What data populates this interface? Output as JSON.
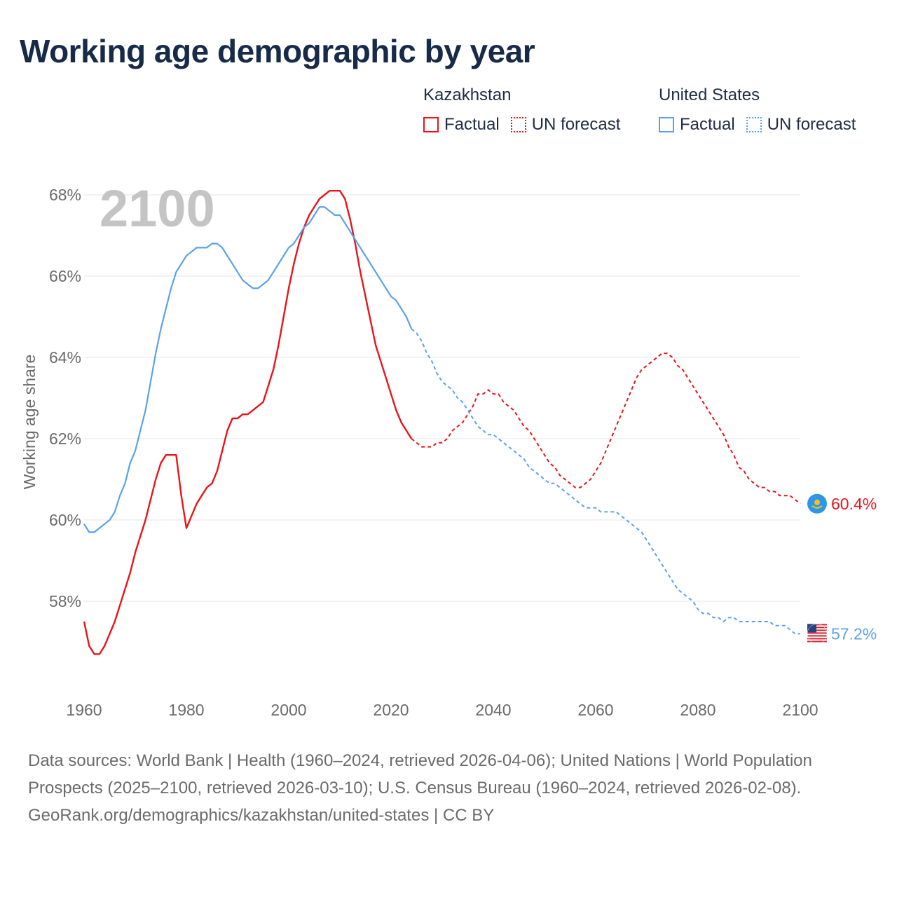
{
  "title": "Working age demographic by year",
  "legend": {
    "groups": [
      {
        "name": "Kazakhstan",
        "factual": "Factual",
        "forecast": "UN forecast",
        "color": "#e8141a"
      },
      {
        "name": "United States",
        "factual": "Factual",
        "forecast": "UN forecast",
        "color": "#5aa2e8"
      }
    ]
  },
  "chart_data": {
    "type": "line",
    "title": "Working age demographic by year",
    "year_watermark": "2100",
    "ylabel": "Working age share",
    "xlabel": "",
    "xlim": [
      1960,
      2100
    ],
    "ylim": [
      56,
      68.5
    ],
    "x_ticks": [
      "1960",
      "1980",
      "2000",
      "2020",
      "2040",
      "2060",
      "2080",
      "2100"
    ],
    "y_ticks": [
      "58%",
      "60%",
      "62%",
      "64%",
      "66%",
      "68%"
    ],
    "y_tick_values": [
      58,
      60,
      62,
      64,
      66,
      68
    ],
    "x_tick_values": [
      1960,
      1980,
      2000,
      2020,
      2040,
      2060,
      2080,
      2100
    ],
    "forecast_start": 2024,
    "series": [
      {
        "name": "Kazakhstan",
        "color": "#e8141a",
        "end_label": "60.4%",
        "flag": "kazakhstan-flag",
        "points": [
          [
            1960,
            57.5
          ],
          [
            1961,
            56.9
          ],
          [
            1962,
            56.7
          ],
          [
            1963,
            56.7
          ],
          [
            1964,
            56.9
          ],
          [
            1965,
            57.2
          ],
          [
            1966,
            57.5
          ],
          [
            1967,
            57.9
          ],
          [
            1968,
            58.3
          ],
          [
            1969,
            58.7
          ],
          [
            1970,
            59.2
          ],
          [
            1971,
            59.6
          ],
          [
            1972,
            60.0
          ],
          [
            1973,
            60.5
          ],
          [
            1974,
            61.0
          ],
          [
            1975,
            61.4
          ],
          [
            1976,
            61.6
          ],
          [
            1977,
            61.6
          ],
          [
            1978,
            61.6
          ],
          [
            1979,
            60.6
          ],
          [
            1980,
            59.8
          ],
          [
            1981,
            60.1
          ],
          [
            1982,
            60.4
          ],
          [
            1983,
            60.6
          ],
          [
            1984,
            60.8
          ],
          [
            1985,
            60.9
          ],
          [
            1986,
            61.2
          ],
          [
            1987,
            61.7
          ],
          [
            1988,
            62.2
          ],
          [
            1989,
            62.5
          ],
          [
            1990,
            62.5
          ],
          [
            1991,
            62.6
          ],
          [
            1992,
            62.6
          ],
          [
            1993,
            62.7
          ],
          [
            1994,
            62.8
          ],
          [
            1995,
            62.9
          ],
          [
            1996,
            63.3
          ],
          [
            1997,
            63.7
          ],
          [
            1998,
            64.3
          ],
          [
            1999,
            65.0
          ],
          [
            2000,
            65.7
          ],
          [
            2001,
            66.3
          ],
          [
            2002,
            66.8
          ],
          [
            2003,
            67.2
          ],
          [
            2004,
            67.5
          ],
          [
            2005,
            67.7
          ],
          [
            2006,
            67.9
          ],
          [
            2007,
            68.0
          ],
          [
            2008,
            68.1
          ],
          [
            2009,
            68.1
          ],
          [
            2010,
            68.1
          ],
          [
            2011,
            67.9
          ],
          [
            2012,
            67.4
          ],
          [
            2013,
            66.8
          ],
          [
            2014,
            66.1
          ],
          [
            2015,
            65.5
          ],
          [
            2016,
            64.9
          ],
          [
            2017,
            64.3
          ],
          [
            2018,
            63.9
          ],
          [
            2019,
            63.5
          ],
          [
            2020,
            63.1
          ],
          [
            2021,
            62.7
          ],
          [
            2022,
            62.4
          ],
          [
            2023,
            62.2
          ],
          [
            2024,
            62.0
          ],
          [
            2025,
            61.9
          ],
          [
            2026,
            61.8
          ],
          [
            2027,
            61.8
          ],
          [
            2028,
            61.8
          ],
          [
            2029,
            61.9
          ],
          [
            2030,
            61.9
          ],
          [
            2031,
            62.0
          ],
          [
            2032,
            62.2
          ],
          [
            2033,
            62.3
          ],
          [
            2034,
            62.4
          ],
          [
            2035,
            62.6
          ],
          [
            2036,
            62.8
          ],
          [
            2037,
            63.1
          ],
          [
            2038,
            63.1
          ],
          [
            2039,
            63.2
          ],
          [
            2040,
            63.1
          ],
          [
            2041,
            63.1
          ],
          [
            2042,
            62.9
          ],
          [
            2043,
            62.8
          ],
          [
            2044,
            62.7
          ],
          [
            2045,
            62.5
          ],
          [
            2046,
            62.3
          ],
          [
            2047,
            62.2
          ],
          [
            2048,
            62.0
          ],
          [
            2049,
            61.8
          ],
          [
            2050,
            61.6
          ],
          [
            2051,
            61.4
          ],
          [
            2052,
            61.3
          ],
          [
            2053,
            61.1
          ],
          [
            2054,
            61.0
          ],
          [
            2055,
            60.9
          ],
          [
            2056,
            60.8
          ],
          [
            2057,
            60.8
          ],
          [
            2058,
            60.9
          ],
          [
            2059,
            61.0
          ],
          [
            2060,
            61.2
          ],
          [
            2061,
            61.4
          ],
          [
            2062,
            61.7
          ],
          [
            2063,
            62.0
          ],
          [
            2064,
            62.3
          ],
          [
            2065,
            62.6
          ],
          [
            2066,
            62.9
          ],
          [
            2067,
            63.2
          ],
          [
            2068,
            63.5
          ],
          [
            2069,
            63.7
          ],
          [
            2070,
            63.8
          ],
          [
            2071,
            63.9
          ],
          [
            2072,
            64.0
          ],
          [
            2073,
            64.1
          ],
          [
            2074,
            64.1
          ],
          [
            2075,
            64.0
          ],
          [
            2076,
            63.8
          ],
          [
            2077,
            63.7
          ],
          [
            2078,
            63.5
          ],
          [
            2079,
            63.3
          ],
          [
            2080,
            63.1
          ],
          [
            2081,
            62.9
          ],
          [
            2082,
            62.7
          ],
          [
            2083,
            62.5
          ],
          [
            2084,
            62.3
          ],
          [
            2085,
            62.1
          ],
          [
            2086,
            61.8
          ],
          [
            2087,
            61.6
          ],
          [
            2088,
            61.3
          ],
          [
            2089,
            61.2
          ],
          [
            2090,
            61.0
          ],
          [
            2091,
            60.9
          ],
          [
            2092,
            60.8
          ],
          [
            2093,
            60.8
          ],
          [
            2094,
            60.7
          ],
          [
            2095,
            60.7
          ],
          [
            2096,
            60.6
          ],
          [
            2097,
            60.6
          ],
          [
            2098,
            60.6
          ],
          [
            2099,
            60.5
          ],
          [
            2100,
            60.4
          ]
        ]
      },
      {
        "name": "United States",
        "color": "#5aa2e8",
        "end_label": "57.2%",
        "flag": "united-states-flag",
        "points": [
          [
            1960,
            59.9
          ],
          [
            1961,
            59.7
          ],
          [
            1962,
            59.7
          ],
          [
            1963,
            59.8
          ],
          [
            1964,
            59.9
          ],
          [
            1965,
            60.0
          ],
          [
            1966,
            60.2
          ],
          [
            1967,
            60.6
          ],
          [
            1968,
            60.9
          ],
          [
            1969,
            61.4
          ],
          [
            1970,
            61.7
          ],
          [
            1971,
            62.2
          ],
          [
            1972,
            62.7
          ],
          [
            1973,
            63.4
          ],
          [
            1974,
            64.1
          ],
          [
            1975,
            64.7
          ],
          [
            1976,
            65.2
          ],
          [
            1977,
            65.7
          ],
          [
            1978,
            66.1
          ],
          [
            1979,
            66.3
          ],
          [
            1980,
            66.5
          ],
          [
            1981,
            66.6
          ],
          [
            1982,
            66.7
          ],
          [
            1983,
            66.7
          ],
          [
            1984,
            66.7
          ],
          [
            1985,
            66.8
          ],
          [
            1986,
            66.8
          ],
          [
            1987,
            66.7
          ],
          [
            1988,
            66.5
          ],
          [
            1989,
            66.3
          ],
          [
            1990,
            66.1
          ],
          [
            1991,
            65.9
          ],
          [
            1992,
            65.8
          ],
          [
            1993,
            65.7
          ],
          [
            1994,
            65.7
          ],
          [
            1995,
            65.8
          ],
          [
            1996,
            65.9
          ],
          [
            1997,
            66.1
          ],
          [
            1998,
            66.3
          ],
          [
            1999,
            66.5
          ],
          [
            2000,
            66.7
          ],
          [
            2001,
            66.8
          ],
          [
            2002,
            67.0
          ],
          [
            2003,
            67.2
          ],
          [
            2004,
            67.3
          ],
          [
            2005,
            67.5
          ],
          [
            2006,
            67.7
          ],
          [
            2007,
            67.7
          ],
          [
            2008,
            67.6
          ],
          [
            2009,
            67.5
          ],
          [
            2010,
            67.5
          ],
          [
            2011,
            67.3
          ],
          [
            2012,
            67.1
          ],
          [
            2013,
            66.9
          ],
          [
            2014,
            66.7
          ],
          [
            2015,
            66.5
          ],
          [
            2016,
            66.3
          ],
          [
            2017,
            66.1
          ],
          [
            2018,
            65.9
          ],
          [
            2019,
            65.7
          ],
          [
            2020,
            65.5
          ],
          [
            2021,
            65.4
          ],
          [
            2022,
            65.2
          ],
          [
            2023,
            65.0
          ],
          [
            2024,
            64.7
          ],
          [
            2025,
            64.6
          ],
          [
            2026,
            64.4
          ],
          [
            2027,
            64.1
          ],
          [
            2028,
            63.9
          ],
          [
            2029,
            63.6
          ],
          [
            2030,
            63.4
          ],
          [
            2031,
            63.3
          ],
          [
            2032,
            63.2
          ],
          [
            2033,
            63.0
          ],
          [
            2034,
            62.9
          ],
          [
            2035,
            62.7
          ],
          [
            2036,
            62.5
          ],
          [
            2037,
            62.3
          ],
          [
            2038,
            62.2
          ],
          [
            2039,
            62.1
          ],
          [
            2040,
            62.1
          ],
          [
            2041,
            62.0
          ],
          [
            2042,
            61.9
          ],
          [
            2043,
            61.8
          ],
          [
            2044,
            61.7
          ],
          [
            2045,
            61.6
          ],
          [
            2046,
            61.5
          ],
          [
            2047,
            61.3
          ],
          [
            2048,
            61.2
          ],
          [
            2049,
            61.1
          ],
          [
            2050,
            61.0
          ],
          [
            2051,
            60.9
          ],
          [
            2052,
            60.9
          ],
          [
            2053,
            60.8
          ],
          [
            2054,
            60.7
          ],
          [
            2055,
            60.6
          ],
          [
            2056,
            60.5
          ],
          [
            2057,
            60.4
          ],
          [
            2058,
            60.3
          ],
          [
            2059,
            60.3
          ],
          [
            2060,
            60.3
          ],
          [
            2061,
            60.2
          ],
          [
            2062,
            60.2
          ],
          [
            2063,
            60.2
          ],
          [
            2064,
            60.2
          ],
          [
            2065,
            60.1
          ],
          [
            2066,
            60.0
          ],
          [
            2067,
            59.9
          ],
          [
            2068,
            59.8
          ],
          [
            2069,
            59.7
          ],
          [
            2070,
            59.5
          ],
          [
            2071,
            59.3
          ],
          [
            2072,
            59.1
          ],
          [
            2073,
            58.9
          ],
          [
            2074,
            58.7
          ],
          [
            2075,
            58.5
          ],
          [
            2076,
            58.3
          ],
          [
            2077,
            58.2
          ],
          [
            2078,
            58.1
          ],
          [
            2079,
            58.0
          ],
          [
            2080,
            57.8
          ],
          [
            2081,
            57.7
          ],
          [
            2082,
            57.7
          ],
          [
            2083,
            57.6
          ],
          [
            2084,
            57.6
          ],
          [
            2085,
            57.5
          ],
          [
            2086,
            57.6
          ],
          [
            2087,
            57.6
          ],
          [
            2088,
            57.5
          ],
          [
            2089,
            57.5
          ],
          [
            2090,
            57.5
          ],
          [
            2091,
            57.5
          ],
          [
            2092,
            57.5
          ],
          [
            2093,
            57.5
          ],
          [
            2094,
            57.5
          ],
          [
            2095,
            57.4
          ],
          [
            2096,
            57.4
          ],
          [
            2097,
            57.4
          ],
          [
            2098,
            57.3
          ],
          [
            2099,
            57.2
          ],
          [
            2100,
            57.2
          ]
        ]
      }
    ]
  },
  "footer": {
    "sources": "Data sources: World Bank | Health (1960–2024, retrieved 2026-04-06); United Nations | World Population Prospects (2025–2100, retrieved 2026-03-10); U.S. Census Bureau (1960–2024, retrieved 2026-02-08).",
    "attribution": "GeoRank.org/demographics/kazakhstan/united-states | CC BY"
  }
}
